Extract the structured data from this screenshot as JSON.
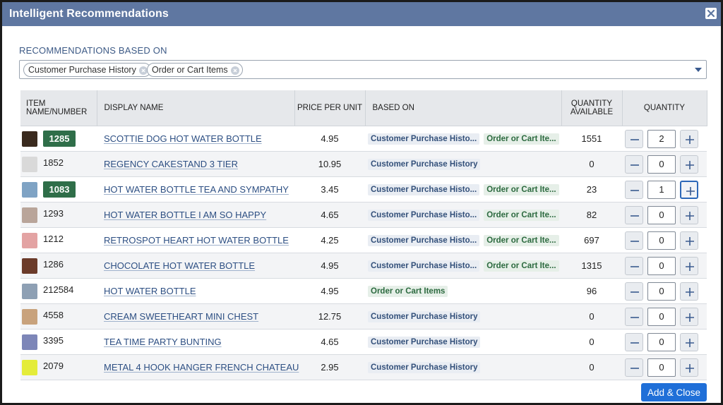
{
  "dialog": {
    "title": "Intelligent Recommendations",
    "close_icon": "close-icon"
  },
  "filters": {
    "label": "RECOMMENDATIONS BASED ON",
    "tags": [
      "Customer Purchase History",
      "Order or Cart Items"
    ]
  },
  "table": {
    "headers": {
      "item": "ITEM NAME/NUMBER",
      "display_name": "DISPLAY NAME",
      "price": "PRICE PER UNIT",
      "based_on": "BASED ON",
      "qty_available": "QUANTITY AVAILABLE",
      "quantity": "QUANTITY"
    },
    "rows": [
      {
        "item": "1285",
        "highlight": true,
        "thumb_color": "#3a2a1e",
        "name": "SCOTTIE DOG HOT WATER BOTTLE",
        "price": "4.95",
        "based": [
          "Customer Purchase Histo...",
          "Order or Cart Ite..."
        ],
        "based_types": [
          "cph",
          "oci"
        ],
        "available": "1551",
        "qty": "2",
        "focused_plus": false
      },
      {
        "item": "1852",
        "highlight": false,
        "thumb_color": "#d9d9d9",
        "name": "REGENCY CAKESTAND 3 TIER",
        "price": "10.95",
        "based": [
          "Customer Purchase History"
        ],
        "based_types": [
          "cph"
        ],
        "available": "0",
        "qty": "0",
        "focused_plus": false
      },
      {
        "item": "1083",
        "highlight": true,
        "thumb_color": "#7fa3c4",
        "name": "HOT WATER BOTTLE TEA AND SYMPATHY",
        "price": "3.45",
        "based": [
          "Customer Purchase Histo...",
          "Order or Cart Ite..."
        ],
        "based_types": [
          "cph",
          "oci"
        ],
        "available": "23",
        "qty": "1",
        "focused_plus": true
      },
      {
        "item": "1293",
        "highlight": false,
        "thumb_color": "#b9a59a",
        "name": "HOT WATER BOTTLE I AM SO HAPPY",
        "price": "4.65",
        "based": [
          "Customer Purchase Histo...",
          "Order or Cart Ite..."
        ],
        "based_types": [
          "cph",
          "oci"
        ],
        "available": "82",
        "qty": "0",
        "focused_plus": false
      },
      {
        "item": "1212",
        "highlight": false,
        "thumb_color": "#e3a3a3",
        "name": "RETROSPOT HEART HOT WATER BOTTLE",
        "price": "4.25",
        "based": [
          "Customer Purchase Histo...",
          "Order or Cart Ite..."
        ],
        "based_types": [
          "cph",
          "oci"
        ],
        "available": "697",
        "qty": "0",
        "focused_plus": false
      },
      {
        "item": "1286",
        "highlight": false,
        "thumb_color": "#6b3b2a",
        "name": "CHOCOLATE HOT WATER BOTTLE",
        "price": "4.95",
        "based": [
          "Customer Purchase Histo...",
          "Order or Cart Ite..."
        ],
        "based_types": [
          "cph",
          "oci"
        ],
        "available": "1315",
        "qty": "0",
        "focused_plus": false
      },
      {
        "item": "212584",
        "highlight": false,
        "thumb_color": "#8ea0b4",
        "name": "HOT WATER BOTTLE",
        "price": "4.95",
        "based": [
          "Order or Cart Items"
        ],
        "based_types": [
          "oci"
        ],
        "available": "96",
        "qty": "0",
        "focused_plus": false
      },
      {
        "item": "4558",
        "highlight": false,
        "thumb_color": "#c8a27c",
        "name": "CREAM SWEETHEART MINI CHEST",
        "price": "12.75",
        "based": [
          "Customer Purchase History"
        ],
        "based_types": [
          "cph"
        ],
        "available": "0",
        "qty": "0",
        "focused_plus": false
      },
      {
        "item": "3395",
        "highlight": false,
        "thumb_color": "#7d86b8",
        "name": "TEA TIME PARTY BUNTING",
        "price": "4.65",
        "based": [
          "Customer Purchase History"
        ],
        "based_types": [
          "cph"
        ],
        "available": "0",
        "qty": "0",
        "focused_plus": false
      },
      {
        "item": "2079",
        "highlight": false,
        "thumb_color": "#e4ec3a",
        "name": "METAL 4 HOOK HANGER FRENCH CHATEAU",
        "price": "2.95",
        "based": [
          "Customer Purchase History"
        ],
        "based_types": [
          "cph"
        ],
        "available": "0",
        "qty": "0",
        "focused_plus": false
      }
    ]
  },
  "actions": {
    "add_close": "Add & Close"
  }
}
